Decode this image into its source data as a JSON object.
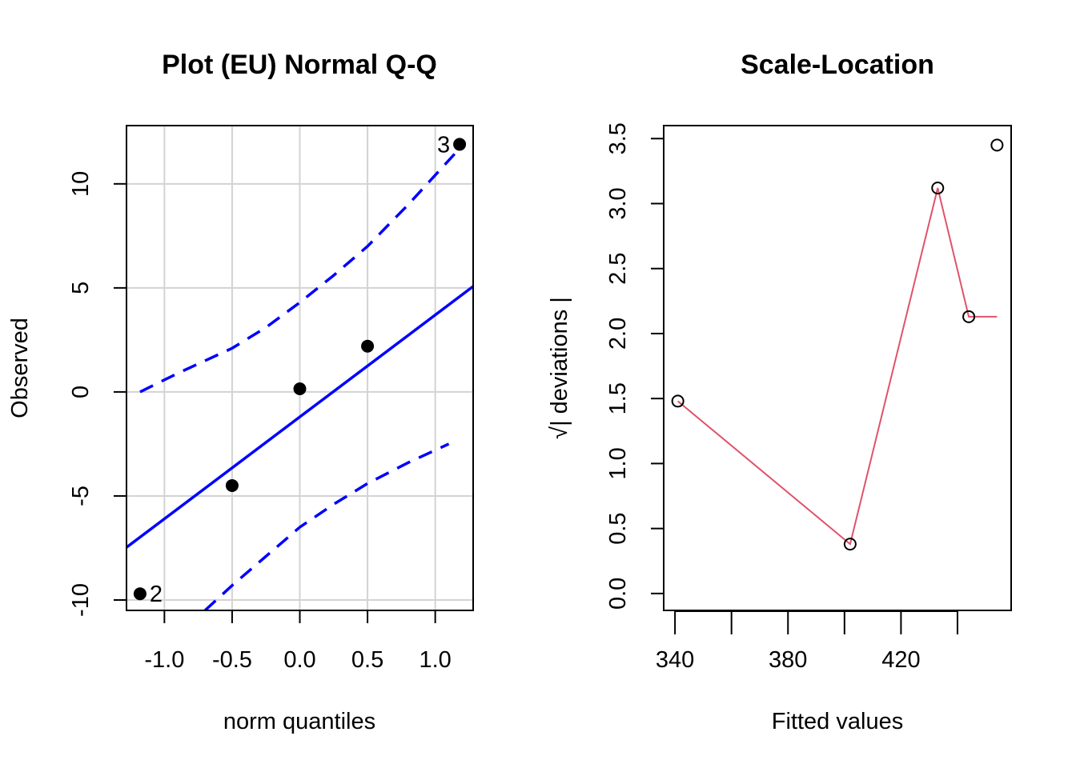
{
  "chart_data": [
    {
      "type": "scatter",
      "title": "Plot (EU) Normal Q-Q",
      "xlabel": "norm quantiles",
      "ylabel": "Observed",
      "xlim": [
        -1.28,
        1.28
      ],
      "ylim": [
        -10.5,
        12.8
      ],
      "grid": true,
      "x_ticks": [
        -1.0,
        -0.5,
        0.0,
        0.5,
        1.0
      ],
      "x_tick_labels": [
        "-1.0",
        "-0.5",
        "0.0",
        "0.5",
        "1.0"
      ],
      "y_ticks": [
        -10,
        -5,
        0,
        5,
        10
      ],
      "y_tick_labels": [
        "-10",
        "-5",
        "0",
        "5",
        "10"
      ],
      "points": [
        {
          "x": -1.18,
          "y": -9.7,
          "label": "2",
          "label_side": "right"
        },
        {
          "x": -0.5,
          "y": -4.5,
          "label": "",
          "label_side": ""
        },
        {
          "x": 0.0,
          "y": 0.15,
          "label": "",
          "label_side": ""
        },
        {
          "x": 0.5,
          "y": 2.2,
          "label": "",
          "label_side": ""
        },
        {
          "x": 1.18,
          "y": 11.9,
          "label": "3",
          "label_side": "left"
        }
      ],
      "reference_line": {
        "intercept": -1.2,
        "slope": 4.9,
        "color": "#0000ff"
      },
      "envelope_color": "#0000ff",
      "envelope_upper": [
        {
          "x": -1.18,
          "y": 0.0
        },
        {
          "x": -0.9,
          "y": 0.9
        },
        {
          "x": -0.5,
          "y": 2.1
        },
        {
          "x": -0.25,
          "y": 3.1
        },
        {
          "x": 0.0,
          "y": 4.3
        },
        {
          "x": 0.25,
          "y": 5.6
        },
        {
          "x": 0.5,
          "y": 7.0
        },
        {
          "x": 0.8,
          "y": 9.0
        },
        {
          "x": 1.18,
          "y": 11.7
        }
      ],
      "envelope_lower": [
        {
          "x": -0.7,
          "y": -10.5
        },
        {
          "x": -0.5,
          "y": -9.3
        },
        {
          "x": -0.25,
          "y": -7.9
        },
        {
          "x": 0.0,
          "y": -6.5
        },
        {
          "x": 0.25,
          "y": -5.4
        },
        {
          "x": 0.5,
          "y": -4.4
        },
        {
          "x": 0.8,
          "y": -3.4
        },
        {
          "x": 1.1,
          "y": -2.5
        }
      ]
    },
    {
      "type": "scatter",
      "title": "Scale-Location",
      "xlabel": "Fitted values",
      "ylabel": "√| deviations |",
      "xlim": [
        336,
        459
      ],
      "ylim": [
        -0.13,
        3.6
      ],
      "grid": false,
      "x_ticks": [
        340,
        360,
        380,
        400,
        420,
        440
      ],
      "x_tick_labels": [
        "340",
        "",
        "380",
        "",
        "420",
        ""
      ],
      "y_ticks": [
        0.0,
        0.5,
        1.0,
        1.5,
        2.0,
        2.5,
        3.0,
        3.5
      ],
      "y_tick_labels": [
        "0.0",
        "0.5",
        "1.0",
        "1.5",
        "2.0",
        "2.5",
        "3.0",
        "3.5"
      ],
      "points": [
        {
          "x": 341,
          "y": 1.48
        },
        {
          "x": 402,
          "y": 0.38
        },
        {
          "x": 433,
          "y": 3.12
        },
        {
          "x": 444,
          "y": 2.13
        },
        {
          "x": 454,
          "y": 3.45
        }
      ],
      "smoother_color": "#df536b",
      "smoother": [
        {
          "x": 341,
          "y": 1.48
        },
        {
          "x": 402,
          "y": 0.38
        },
        {
          "x": 433,
          "y": 3.12
        },
        {
          "x": 444,
          "y": 2.13
        },
        {
          "x": 454,
          "y": 2.13
        }
      ]
    }
  ]
}
